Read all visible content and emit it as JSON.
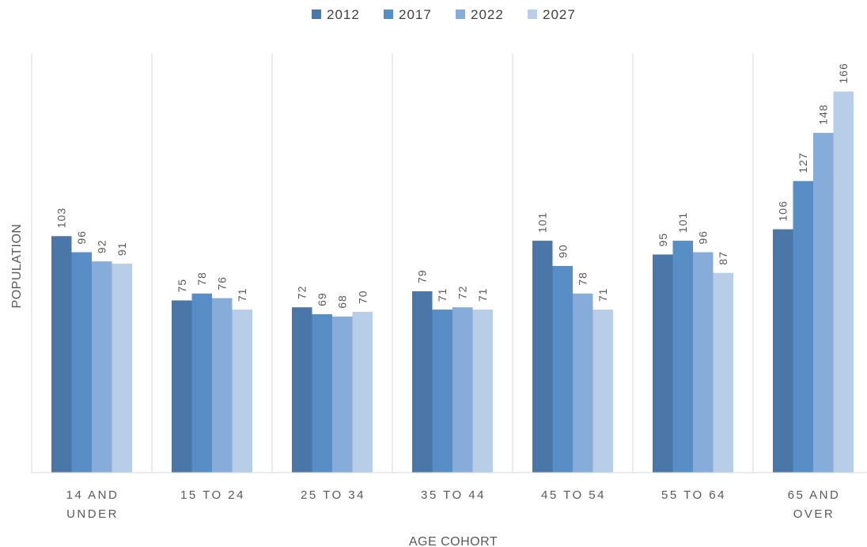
{
  "chart_data": {
    "type": "bar",
    "title": "",
    "xlabel": "AGE COHORT",
    "ylabel": "POPULATION",
    "categories": [
      [
        "14 AND",
        "UNDER"
      ],
      [
        "15 TO 24"
      ],
      [
        "25 TO 34"
      ],
      [
        "35 TO 44"
      ],
      [
        "45 TO 54"
      ],
      [
        "55 TO 64"
      ],
      [
        "65 AND",
        "OVER"
      ]
    ],
    "series": [
      {
        "name": "2012",
        "color": "#4a77a8",
        "values": [
          103,
          75,
          72,
          79,
          101,
          95,
          106
        ]
      },
      {
        "name": "2017",
        "color": "#578ec6",
        "values": [
          96,
          78,
          69,
          71,
          90,
          101,
          127
        ]
      },
      {
        "name": "2022",
        "color": "#86acd9",
        "values": [
          92,
          76,
          68,
          72,
          78,
          96,
          148
        ]
      },
      {
        "name": "2027",
        "color": "#b7cde8",
        "values": [
          91,
          71,
          70,
          71,
          71,
          87,
          166
        ]
      }
    ],
    "ylim": [
      0,
      175
    ],
    "grid": "vertical category separators",
    "legend_position": "top-center",
    "data_labels": true
  }
}
